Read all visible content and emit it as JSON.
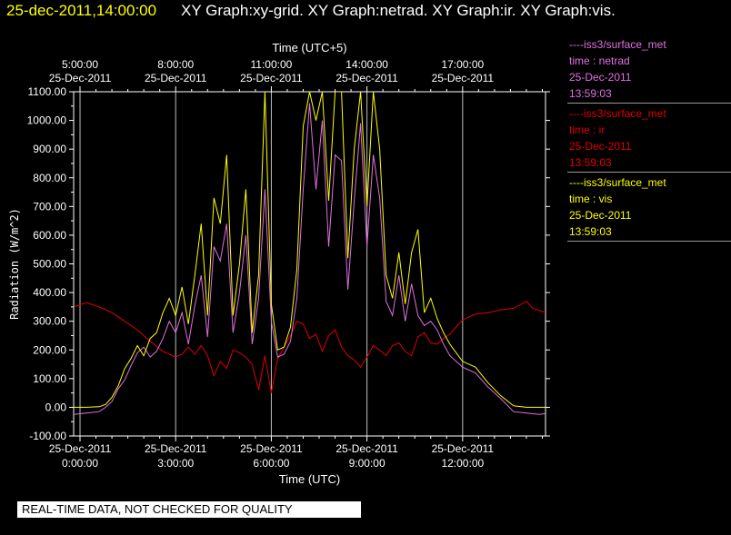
{
  "header": {
    "timestamp": "25-dec-2011,14:00:00",
    "titles": "XY Graph:xy-grid.  XY Graph:netrad.  XY Graph:ir.  XY Graph:vis."
  },
  "notice": "REAL-TIME DATA, NOT CHECKED FOR QUALITY",
  "colors": {
    "netrad": "#e070e0",
    "ir": "#e00000",
    "vis": "#ffff00",
    "grid": "#ffffff",
    "axis": "#ffffff"
  },
  "legend": [
    {
      "source": "----iss3/surface_met",
      "field": "time : netrad",
      "date": "25-Dec-2011",
      "time": "13:59:03",
      "color": "#e070e0"
    },
    {
      "source": "----iss3/surface_met",
      "field": "time : ir",
      "date": "25-Dec-2011",
      "time": "13:59:03",
      "color": "#e00000"
    },
    {
      "source": "----iss3/surface_met",
      "field": "time : vis",
      "date": "25-Dec-2011",
      "time": "13:59:03",
      "color": "#ffff00"
    }
  ],
  "chart_data": {
    "type": "line",
    "title": "",
    "xlabel": "Time (UTC)",
    "x2label": "Time (UTC+5)",
    "ylabel": "Radiation (W/m^2)",
    "xlim": [
      -0.2,
      14.6
    ],
    "ylim": [
      -100,
      1100
    ],
    "yticks": [
      "-100.00",
      "0.00",
      "100.00",
      "200.00",
      "300.00",
      "400.00",
      "500.00",
      "600.00",
      "700.00",
      "800.00",
      "900.00",
      "1000.00",
      "1100.00"
    ],
    "xticks": [
      {
        "x": 0,
        "date": "25-Dec-2011",
        "time": "0:00:00"
      },
      {
        "x": 3,
        "date": "25-Dec-2011",
        "time": "3:00:00"
      },
      {
        "x": 6,
        "date": "25-Dec-2011",
        "time": "6:00:00"
      },
      {
        "x": 9,
        "date": "25-Dec-2011",
        "time": "9:00:00"
      },
      {
        "x": 12,
        "date": "25-Dec-2011",
        "time": "12:00:00"
      }
    ],
    "x2ticks": [
      {
        "x": 0,
        "date": "25-Dec-2011",
        "time": "5:00:00"
      },
      {
        "x": 3,
        "date": "25-Dec-2011",
        "time": "8:00:00"
      },
      {
        "x": 6,
        "date": "25-Dec-2011",
        "time": "11:00:00"
      },
      {
        "x": 9,
        "date": "25-Dec-2011",
        "time": "14:00:00"
      },
      {
        "x": 12,
        "date": "25-Dec-2011",
        "time": "17:00:00"
      }
    ],
    "grid": true,
    "series": [
      {
        "name": "ir",
        "color": "#e00000",
        "points": [
          [
            -0.2,
            350
          ],
          [
            0.2,
            365
          ],
          [
            0.6,
            350
          ],
          [
            1.0,
            330
          ],
          [
            1.4,
            300
          ],
          [
            1.8,
            270
          ],
          [
            2.2,
            230
          ],
          [
            2.6,
            195
          ],
          [
            3.0,
            175
          ],
          [
            3.2,
            185
          ],
          [
            3.4,
            210
          ],
          [
            3.6,
            185
          ],
          [
            3.8,
            215
          ],
          [
            4.0,
            180
          ],
          [
            4.2,
            110
          ],
          [
            4.4,
            160
          ],
          [
            4.6,
            135
          ],
          [
            4.8,
            200
          ],
          [
            5.0,
            190
          ],
          [
            5.2,
            175
          ],
          [
            5.4,
            150
          ],
          [
            5.6,
            60
          ],
          [
            5.8,
            180
          ],
          [
            6.0,
            50
          ],
          [
            6.2,
            170
          ],
          [
            6.4,
            210
          ],
          [
            6.6,
            250
          ],
          [
            6.8,
            300
          ],
          [
            7.0,
            290
          ],
          [
            7.2,
            240
          ],
          [
            7.4,
            255
          ],
          [
            7.6,
            195
          ],
          [
            7.8,
            250
          ],
          [
            8.0,
            270
          ],
          [
            8.2,
            210
          ],
          [
            8.4,
            180
          ],
          [
            8.6,
            165
          ],
          [
            8.8,
            140
          ],
          [
            9.0,
            175
          ],
          [
            9.2,
            215
          ],
          [
            9.4,
            200
          ],
          [
            9.6,
            180
          ],
          [
            9.8,
            215
          ],
          [
            10.0,
            225
          ],
          [
            10.2,
            195
          ],
          [
            10.4,
            180
          ],
          [
            10.6,
            245
          ],
          [
            10.8,
            260
          ],
          [
            11.0,
            225
          ],
          [
            11.2,
            220
          ],
          [
            11.4,
            240
          ],
          [
            11.6,
            255
          ],
          [
            11.8,
            280
          ],
          [
            12.0,
            305
          ],
          [
            12.4,
            325
          ],
          [
            12.8,
            330
          ],
          [
            13.2,
            340
          ],
          [
            13.6,
            345
          ],
          [
            14.0,
            370
          ],
          [
            14.2,
            345
          ],
          [
            14.6,
            330
          ]
        ]
      },
      {
        "name": "netrad",
        "color": "#e070e0",
        "points": [
          [
            -0.2,
            -25
          ],
          [
            0.2,
            -20
          ],
          [
            0.6,
            -15
          ],
          [
            0.8,
            0
          ],
          [
            1.0,
            20
          ],
          [
            1.2,
            65
          ],
          [
            1.4,
            95
          ],
          [
            1.6,
            145
          ],
          [
            1.8,
            190
          ],
          [
            2.0,
            210
          ],
          [
            2.2,
            175
          ],
          [
            2.4,
            195
          ],
          [
            2.6,
            240
          ],
          [
            2.8,
            300
          ],
          [
            3.0,
            260
          ],
          [
            3.2,
            330
          ],
          [
            3.4,
            220
          ],
          [
            3.6,
            355
          ],
          [
            3.8,
            460
          ],
          [
            4.0,
            245
          ],
          [
            4.2,
            560
          ],
          [
            4.4,
            510
          ],
          [
            4.6,
            640
          ],
          [
            4.8,
            260
          ],
          [
            5.0,
            400
          ],
          [
            5.2,
            600
          ],
          [
            5.4,
            220
          ],
          [
            5.6,
            380
          ],
          [
            5.8,
            760
          ],
          [
            6.0,
            300
          ],
          [
            6.2,
            175
          ],
          [
            6.4,
            185
          ],
          [
            6.6,
            230
          ],
          [
            6.8,
            380
          ],
          [
            7.0,
            760
          ],
          [
            7.2,
            1060
          ],
          [
            7.4,
            760
          ],
          [
            7.6,
            1000
          ],
          [
            7.8,
            560
          ],
          [
            8.0,
            880
          ],
          [
            8.2,
            860
          ],
          [
            8.4,
            410
          ],
          [
            8.6,
            720
          ],
          [
            8.8,
            990
          ],
          [
            9.0,
            560
          ],
          [
            9.2,
            880
          ],
          [
            9.4,
            730
          ],
          [
            9.6,
            370
          ],
          [
            9.8,
            320
          ],
          [
            10.0,
            460
          ],
          [
            10.2,
            300
          ],
          [
            10.4,
            430
          ],
          [
            10.6,
            320
          ],
          [
            10.8,
            285
          ],
          [
            11.0,
            300
          ],
          [
            11.2,
            270
          ],
          [
            11.4,
            220
          ],
          [
            11.6,
            180
          ],
          [
            11.8,
            160
          ],
          [
            12.0,
            140
          ],
          [
            12.4,
            120
          ],
          [
            12.8,
            70
          ],
          [
            13.2,
            30
          ],
          [
            13.6,
            -15
          ],
          [
            14.0,
            -20
          ],
          [
            14.4,
            -25
          ],
          [
            14.6,
            -22
          ]
        ]
      },
      {
        "name": "vis",
        "color": "#ffff00",
        "points": [
          [
            -0.2,
            0
          ],
          [
            0.2,
            0
          ],
          [
            0.6,
            2
          ],
          [
            0.8,
            10
          ],
          [
            1.0,
            35
          ],
          [
            1.2,
            75
          ],
          [
            1.4,
            135
          ],
          [
            1.6,
            170
          ],
          [
            1.8,
            215
          ],
          [
            2.0,
            180
          ],
          [
            2.2,
            240
          ],
          [
            2.4,
            260
          ],
          [
            2.6,
            330
          ],
          [
            2.8,
            380
          ],
          [
            3.0,
            320
          ],
          [
            3.2,
            420
          ],
          [
            3.4,
            290
          ],
          [
            3.6,
            460
          ],
          [
            3.8,
            640
          ],
          [
            4.0,
            320
          ],
          [
            4.2,
            730
          ],
          [
            4.4,
            640
          ],
          [
            4.6,
            880
          ],
          [
            4.8,
            320
          ],
          [
            5.0,
            500
          ],
          [
            5.2,
            760
          ],
          [
            5.4,
            260
          ],
          [
            5.6,
            460
          ],
          [
            5.8,
            1100
          ],
          [
            6.0,
            360
          ],
          [
            6.2,
            200
          ],
          [
            6.4,
            210
          ],
          [
            6.6,
            280
          ],
          [
            6.8,
            480
          ],
          [
            7.0,
            980
          ],
          [
            7.2,
            1100
          ],
          [
            7.4,
            1000
          ],
          [
            7.6,
            1100
          ],
          [
            7.8,
            720
          ],
          [
            8.0,
            1100
          ],
          [
            8.2,
            1100
          ],
          [
            8.4,
            520
          ],
          [
            8.6,
            900
          ],
          [
            8.8,
            1100
          ],
          [
            9.0,
            700
          ],
          [
            9.2,
            1100
          ],
          [
            9.4,
            900
          ],
          [
            9.6,
            460
          ],
          [
            9.8,
            380
          ],
          [
            10.0,
            540
          ],
          [
            10.2,
            360
          ],
          [
            10.4,
            540
          ],
          [
            10.6,
            620
          ],
          [
            10.8,
            330
          ],
          [
            11.0,
            380
          ],
          [
            11.2,
            310
          ],
          [
            11.4,
            260
          ],
          [
            11.6,
            220
          ],
          [
            11.8,
            190
          ],
          [
            12.0,
            160
          ],
          [
            12.4,
            140
          ],
          [
            12.8,
            85
          ],
          [
            13.2,
            40
          ],
          [
            13.6,
            5
          ],
          [
            14.0,
            0
          ],
          [
            14.6,
            0
          ]
        ]
      }
    ]
  }
}
